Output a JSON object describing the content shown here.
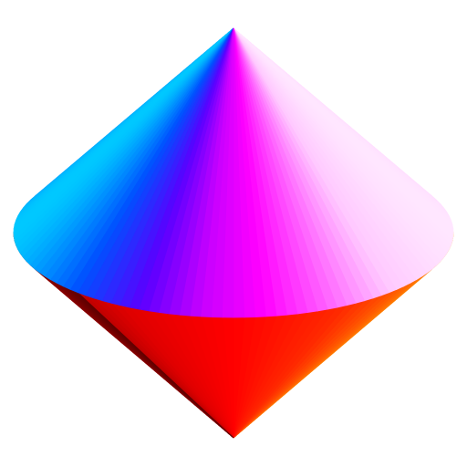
{
  "scene": {
    "background": "#ffffff",
    "object": "double-cone",
    "segments": 64,
    "upper_cone": {
      "gradient_stops": [
        "#00c8ff",
        "#0050ff",
        "#5a00ff",
        "#c800ff",
        "#ff00ff",
        "#ff60ff",
        "#ffc8ff",
        "#ffe6ff"
      ]
    },
    "lower_cone": {
      "gradient_stops": [
        "#600000",
        "#a00000",
        "#e00000",
        "#ff0000",
        "#ff2a00",
        "#ff7a00",
        "#ffb000"
      ]
    }
  }
}
